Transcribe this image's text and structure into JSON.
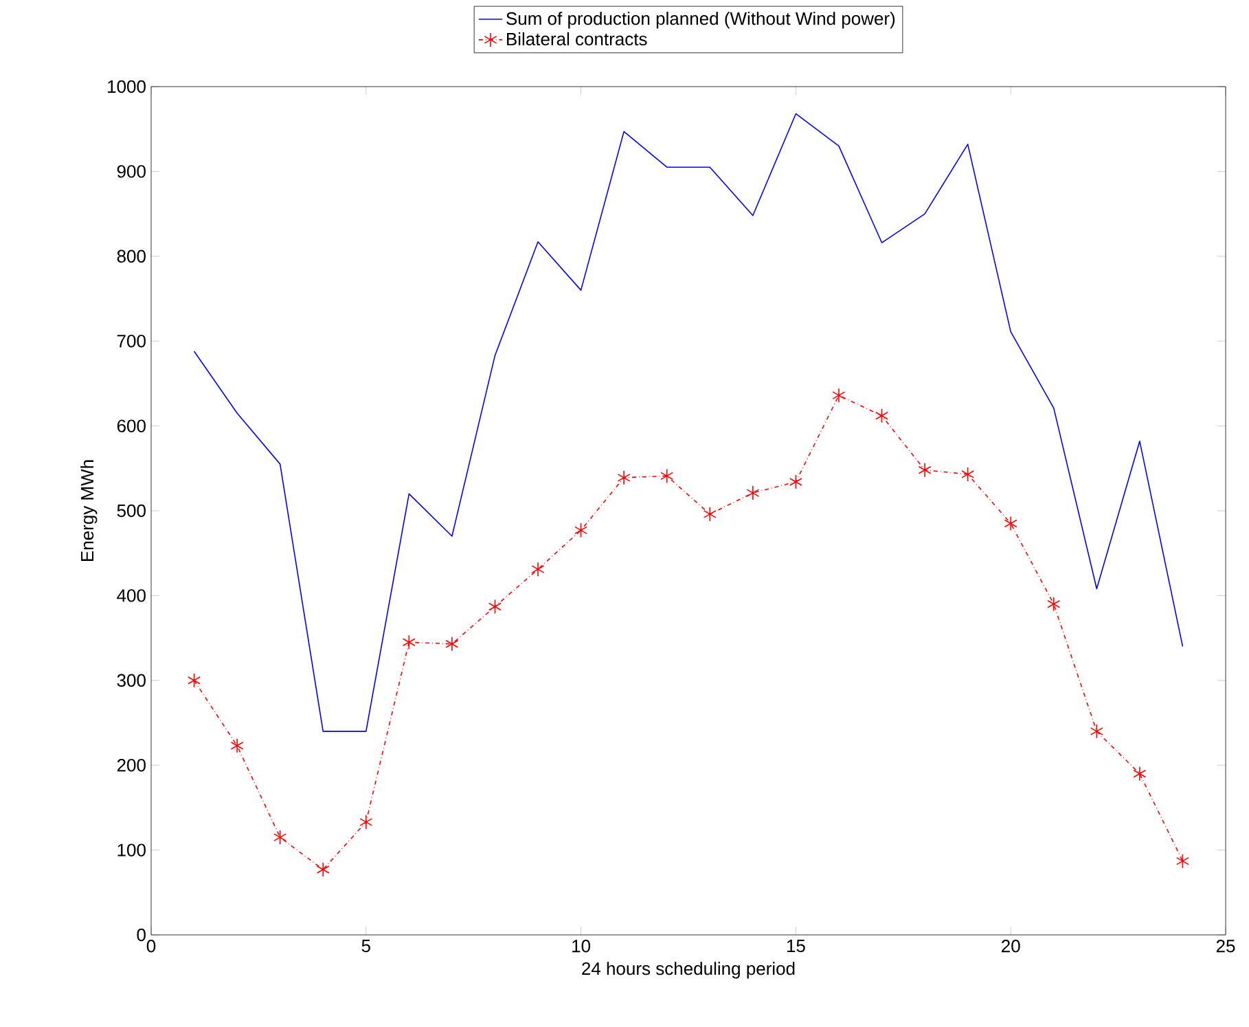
{
  "chart_data": {
    "type": "line",
    "xlabel": "24 hours scheduling period",
    "ylabel": "Energy MWh",
    "x": [
      1,
      2,
      3,
      4,
      5,
      6,
      7,
      8,
      9,
      10,
      11,
      12,
      13,
      14,
      15,
      16,
      17,
      18,
      19,
      20,
      21,
      22,
      23,
      24
    ],
    "series": [
      {
        "name": "Sum of production planned (Without Wind power)",
        "color": "#0000ff",
        "marker": "none",
        "line_style": "solid",
        "values": [
          688,
          615,
          555,
          240,
          240,
          520,
          470,
          683,
          817,
          760,
          947,
          905,
          905,
          848,
          968,
          930,
          816,
          850,
          932,
          711,
          621,
          408,
          582,
          340
        ]
      },
      {
        "name": "Bilateral contracts",
        "color": "#ff0000",
        "marker": "cross",
        "line_style": "dashdot",
        "values": [
          300,
          223,
          115,
          77,
          133,
          345,
          343,
          387,
          431,
          477,
          539,
          541,
          496,
          521,
          534,
          636,
          612,
          548,
          543,
          485,
          390,
          240,
          190,
          87
        ]
      }
    ],
    "xlim": [
      0,
      25
    ],
    "xticks": [
      0,
      5,
      10,
      15,
      20,
      25
    ],
    "ylim": [
      0,
      1000
    ],
    "yticks": [
      0,
      100,
      200,
      300,
      400,
      500,
      600,
      700,
      800,
      900,
      1000
    ],
    "grid": false,
    "legend": "top"
  }
}
